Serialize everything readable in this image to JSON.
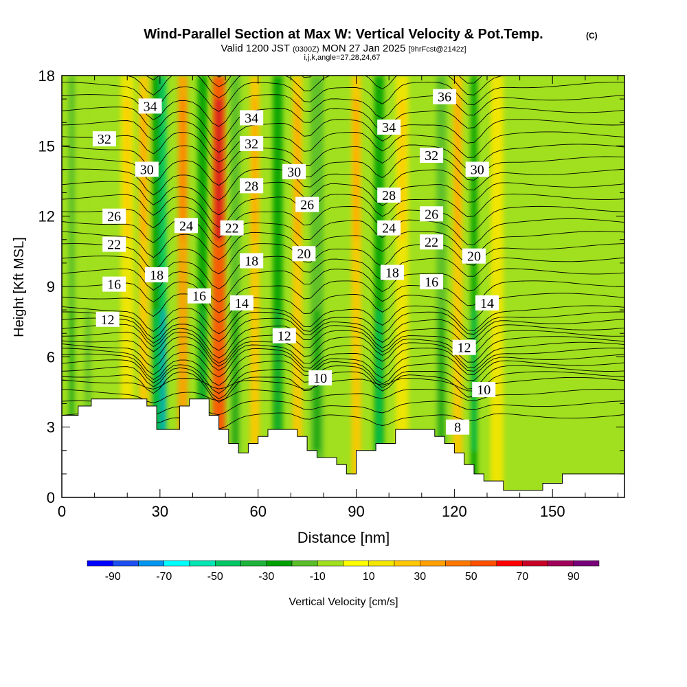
{
  "chart_data": {
    "type": "heatmap",
    "title": "Wind-Parallel Section at Max W: Vertical Velocity & Pot.Temp.",
    "copyright": "(C)",
    "subtitle": {
      "valid": "Valid 1200 JST",
      "utc": "(0300Z)",
      "date": "MON 27 Jan 2025",
      "fcst": "[9hrFcst@2142z]"
    },
    "params": "i,j,k,angle=27,28,24,67",
    "xlabel": "Distance [nm]",
    "ylabel": "Height [Kft MSL]",
    "xlim": [
      0,
      172
    ],
    "ylim": [
      0,
      18
    ],
    "xticks": [
      0,
      30,
      60,
      90,
      120,
      150
    ],
    "xtick_labels": [
      "0",
      "30",
      "60",
      "90",
      "120",
      "150"
    ],
    "yticks": [
      0,
      3,
      6,
      9,
      12,
      15,
      18
    ],
    "ytick_labels": [
      "0",
      "3",
      "6",
      "9",
      "12",
      "15",
      "18"
    ],
    "colorbar": {
      "label": "Vertical Velocity [cm/s]",
      "tick_labels": [
        "-90",
        "-70",
        "-50",
        "-30",
        "-10",
        "10",
        "30",
        "50",
        "70",
        "90"
      ],
      "levels": [
        -100,
        -90,
        -80,
        -70,
        -60,
        -50,
        -40,
        -30,
        -20,
        -10,
        0,
        10,
        20,
        30,
        40,
        50,
        60,
        70,
        80,
        90,
        100
      ],
      "colors": [
        "#0000ff",
        "#1e50f0",
        "#0096f0",
        "#00ffff",
        "#00e6b4",
        "#00c864",
        "#1eb43c",
        "#00a000",
        "#5abe28",
        "#a0e01e",
        "#ffff00",
        "#f5e600",
        "#ffc800",
        "#ffa000",
        "#ff7800",
        "#ff5000",
        "#ff0000",
        "#c80028",
        "#a0005a",
        "#780078"
      ]
    },
    "terrain": [
      [
        0,
        3.5
      ],
      [
        5,
        3.5
      ],
      [
        5,
        3.9
      ],
      [
        9,
        3.9
      ],
      [
        9,
        4.2
      ],
      [
        26,
        4.2
      ],
      [
        26,
        3.9
      ],
      [
        29,
        3.9
      ],
      [
        29,
        2.9
      ],
      [
        36,
        2.9
      ],
      [
        36,
        3.9
      ],
      [
        39,
        3.9
      ],
      [
        39,
        4.2
      ],
      [
        45,
        4.2
      ],
      [
        45,
        3.5
      ],
      [
        48,
        3.5
      ],
      [
        48,
        2.9
      ],
      [
        51,
        2.9
      ],
      [
        51,
        2.3
      ],
      [
        54,
        2.3
      ],
      [
        54,
        1.9
      ],
      [
        57,
        1.9
      ],
      [
        57,
        2.3
      ],
      [
        60,
        2.3
      ],
      [
        60,
        2.6
      ],
      [
        63,
        2.6
      ],
      [
        63,
        2.9
      ],
      [
        72,
        2.9
      ],
      [
        72,
        2.6
      ],
      [
        75,
        2.6
      ],
      [
        75,
        2.0
      ],
      [
        78,
        2.0
      ],
      [
        78,
        1.7
      ],
      [
        84,
        1.7
      ],
      [
        84,
        1.4
      ],
      [
        87,
        1.4
      ],
      [
        87,
        1.0
      ],
      [
        90,
        1.0
      ],
      [
        90,
        2.0
      ],
      [
        96,
        2.0
      ],
      [
        96,
        2.3
      ],
      [
        102,
        2.3
      ],
      [
        102,
        2.9
      ],
      [
        114,
        2.9
      ],
      [
        114,
        2.6
      ],
      [
        117,
        2.6
      ],
      [
        117,
        2.3
      ],
      [
        120,
        2.3
      ],
      [
        120,
        1.9
      ],
      [
        123,
        1.9
      ],
      [
        123,
        1.4
      ],
      [
        126,
        1.4
      ],
      [
        126,
        1.0
      ],
      [
        129,
        1.0
      ],
      [
        129,
        0.7
      ],
      [
        135,
        0.7
      ],
      [
        135,
        0.3
      ],
      [
        147,
        0.3
      ],
      [
        147,
        0.6
      ],
      [
        153,
        0.6
      ],
      [
        153,
        1.0
      ],
      [
        172,
        1.0
      ]
    ],
    "w_bands": [
      {
        "x": 3,
        "width": 2,
        "w": -20
      },
      {
        "x": 8,
        "width": 4,
        "w": -10
      },
      {
        "x": 20,
        "width": 4,
        "w": 15
      },
      {
        "x": 25,
        "width": 3,
        "w": 25
      },
      {
        "x": 29,
        "width": 3,
        "w": -30
      },
      {
        "x": 31,
        "width": 2,
        "w": -50
      },
      {
        "x": 37,
        "width": 3,
        "w": 30
      },
      {
        "x": 43,
        "width": 3,
        "w": -25
      },
      {
        "x": 48,
        "width": 4,
        "w": 50
      },
      {
        "x": 53,
        "width": 3,
        "w": -20
      },
      {
        "x": 59,
        "width": 3,
        "w": 25
      },
      {
        "x": 66,
        "width": 3,
        "w": -25
      },
      {
        "x": 72,
        "width": 3,
        "w": 20
      },
      {
        "x": 78,
        "width": 4,
        "w": -20
      },
      {
        "x": 90,
        "width": 3,
        "w": 25
      },
      {
        "x": 97,
        "width": 3,
        "w": -30
      },
      {
        "x": 104,
        "width": 4,
        "w": 15
      },
      {
        "x": 116,
        "width": 3,
        "w": -20
      },
      {
        "x": 121,
        "width": 3,
        "w": 20
      },
      {
        "x": 126,
        "width": 2,
        "w": -30
      },
      {
        "x": 133,
        "width": 4,
        "w": 12
      }
    ],
    "theta_labels": [
      {
        "text": "34",
        "x": 27,
        "y": 16.7
      },
      {
        "text": "32",
        "x": 13,
        "y": 15.3
      },
      {
        "text": "30",
        "x": 26,
        "y": 14.0
      },
      {
        "text": "26",
        "x": 16,
        "y": 12.0
      },
      {
        "text": "24",
        "x": 38,
        "y": 11.6
      },
      {
        "text": "22",
        "x": 16,
        "y": 10.8
      },
      {
        "text": "18",
        "x": 29,
        "y": 9.5
      },
      {
        "text": "16",
        "x": 16,
        "y": 9.1
      },
      {
        "text": "16",
        "x": 42,
        "y": 8.6
      },
      {
        "text": "14",
        "x": 55,
        "y": 8.3
      },
      {
        "text": "12",
        "x": 14,
        "y": 7.6
      },
      {
        "text": "34",
        "x": 58,
        "y": 16.2
      },
      {
        "text": "32",
        "x": 58,
        "y": 15.1
      },
      {
        "text": "28",
        "x": 58,
        "y": 13.3
      },
      {
        "text": "22",
        "x": 52,
        "y": 11.5
      },
      {
        "text": "18",
        "x": 58,
        "y": 10.1
      },
      {
        "text": "30",
        "x": 71,
        "y": 13.9
      },
      {
        "text": "26",
        "x": 75,
        "y": 12.5
      },
      {
        "text": "20",
        "x": 74,
        "y": 10.4
      },
      {
        "text": "12",
        "x": 68,
        "y": 6.9
      },
      {
        "text": "10",
        "x": 79,
        "y": 5.1
      },
      {
        "text": "36",
        "x": 117,
        "y": 17.1
      },
      {
        "text": "34",
        "x": 100,
        "y": 15.8
      },
      {
        "text": "32",
        "x": 113,
        "y": 14.6
      },
      {
        "text": "30",
        "x": 127,
        "y": 14.0
      },
      {
        "text": "28",
        "x": 100,
        "y": 12.9
      },
      {
        "text": "26",
        "x": 113,
        "y": 12.1
      },
      {
        "text": "24",
        "x": 100,
        "y": 11.5
      },
      {
        "text": "22",
        "x": 113,
        "y": 10.9
      },
      {
        "text": "20",
        "x": 126,
        "y": 10.3
      },
      {
        "text": "18",
        "x": 101,
        "y": 9.6
      },
      {
        "text": "16",
        "x": 113,
        "y": 9.2
      },
      {
        "text": "14",
        "x": 130,
        "y": 8.3
      },
      {
        "text": "12",
        "x": 123,
        "y": 6.4
      },
      {
        "text": "10",
        "x": 129,
        "y": 4.6
      },
      {
        "text": "8",
        "x": 121,
        "y": 3.0
      }
    ],
    "theta_levels": [
      7,
      8,
      9,
      10,
      10.5,
      11,
      11.5,
      12,
      12.5,
      13,
      13.5,
      14,
      14.5,
      15,
      15.5,
      16,
      17,
      18,
      19,
      20,
      21,
      22,
      23,
      24,
      25,
      26,
      27,
      28,
      29,
      30,
      31,
      32,
      33,
      34,
      35,
      36,
      37
    ]
  }
}
